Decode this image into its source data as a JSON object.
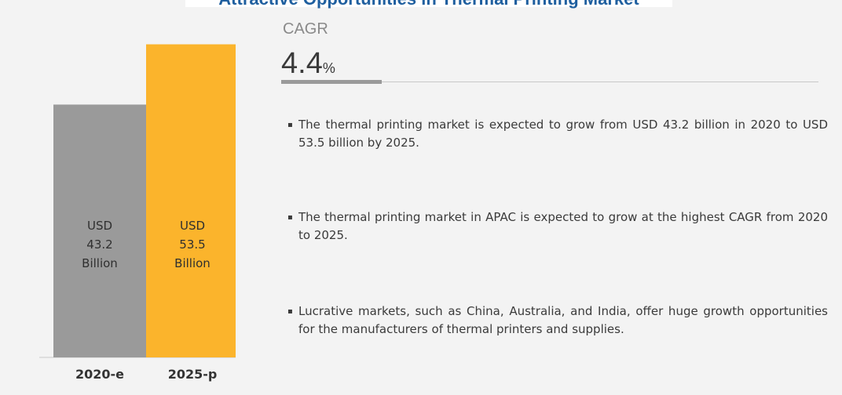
{
  "title": "Attractive Opportunities in Thermal Printing Market",
  "cagr": {
    "label": "CAGR",
    "value": "4.4",
    "unit": "%"
  },
  "bullets": [
    "The thermal printing market is expected to grow from USD 43.2 billion in 2020 to USD 53.5 billion by 2025.",
    "The thermal printing market in APAC is expected to grow at the highest CAGR from 2020 to 2025.",
    "Lucrative markets, such as China, Australia, and India, offer huge growth opportunities for the manufacturers of thermal printers and supplies."
  ],
  "colors": {
    "bar_2020": "#9a9a9a",
    "bar_2025": "#fbb42c",
    "title": "#1f5f9f"
  },
  "chart_data": {
    "type": "bar",
    "categories": [
      "2020-e",
      "2025-p"
    ],
    "values": [
      43.2,
      53.5
    ],
    "value_labels": [
      [
        "USD",
        "43.2",
        "Billion"
      ],
      [
        "USD",
        "53.5",
        "Billion"
      ]
    ],
    "ylim": [
      0,
      60
    ],
    "grid": false
  }
}
